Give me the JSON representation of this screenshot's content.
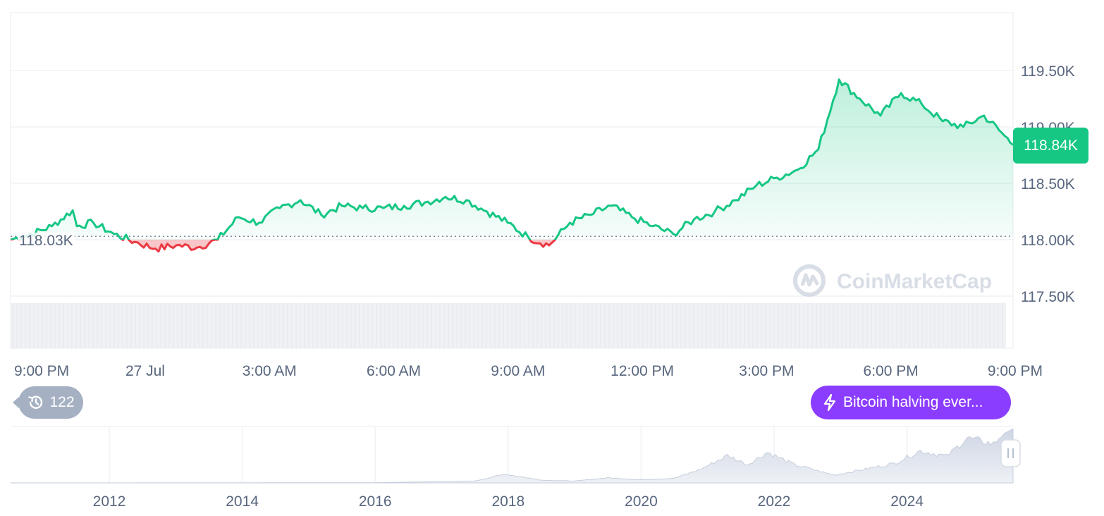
{
  "colors": {
    "up": "#16c784",
    "down": "#ea3943",
    "grid": "#eff2f5",
    "label": "#58667e",
    "volume": "#e6e9ee",
    "event": "#8b3dff",
    "history": "#a6b0c3"
  },
  "watermark": "CoinMarketCap",
  "current_price_label": "118.84K",
  "reference_price_label": "118.03K",
  "history_badge": {
    "icon": "history-clock-icon",
    "count": "122"
  },
  "event_badge": {
    "icon": "lightning-icon",
    "label": "Bitcoin halving ever..."
  },
  "chart_data": [
    {
      "type": "area",
      "ylim": [
        117.25,
        119.92
      ],
      "reference_price": 118.03,
      "current_price": 118.84,
      "yticks": [
        {
          "value": 117.5,
          "label": "117.50K"
        },
        {
          "value": 118.0,
          "label": "118.00K"
        },
        {
          "value": 118.5,
          "label": "118.50K"
        },
        {
          "value": 119.0,
          "label": "119.00K"
        },
        {
          "value": 119.5,
          "label": "119.50K"
        }
      ],
      "xlim": [
        0,
        24.2
      ],
      "xticks": [
        {
          "x": 0.75,
          "label": "9:00 PM"
        },
        {
          "x": 3.25,
          "label": "27 Jul"
        },
        {
          "x": 6.25,
          "label": "3:00 AM"
        },
        {
          "x": 9.25,
          "label": "6:00 AM"
        },
        {
          "x": 12.25,
          "label": "9:00 AM"
        },
        {
          "x": 15.25,
          "label": "12:00 PM"
        },
        {
          "x": 18.25,
          "label": "3:00 PM"
        },
        {
          "x": 21.25,
          "label": "6:00 PM"
        },
        {
          "x": 24.25,
          "label": "9:00 PM"
        }
      ],
      "series": [
        {
          "x": [
            0,
            0.5,
            1,
            1.5,
            1.6,
            2,
            2.5,
            3,
            3.5,
            4,
            4.5,
            5,
            5.5,
            6,
            6.5,
            7,
            7.5,
            8,
            8.5,
            9,
            9.5,
            10,
            10.5,
            11,
            11.5,
            12,
            12.5,
            13,
            13.5,
            14,
            14.5,
            15,
            15.5,
            16,
            16.5,
            17,
            17.5,
            18,
            18.5,
            19,
            19.5,
            20,
            20.5,
            21,
            21.5,
            22,
            22.5,
            23,
            23.5,
            24,
            24.2
          ],
          "y": [
            118.0,
            118.05,
            118.12,
            118.26,
            118.12,
            118.15,
            118.05,
            117.98,
            117.92,
            117.95,
            117.93,
            118.0,
            118.2,
            118.15,
            118.28,
            118.35,
            118.22,
            118.3,
            118.28,
            118.28,
            118.3,
            118.33,
            118.38,
            118.35,
            118.25,
            118.15,
            118.02,
            117.95,
            118.15,
            118.22,
            118.3,
            118.2,
            118.12,
            118.05,
            118.18,
            118.25,
            118.35,
            118.48,
            118.55,
            118.62,
            118.8,
            119.42,
            119.25,
            119.1,
            119.3,
            119.2,
            119.05,
            119.0,
            119.1,
            118.92,
            118.84
          ]
        }
      ]
    },
    {
      "type": "area",
      "xticks": [
        "2012",
        "2014",
        "2016",
        "2018",
        "2020",
        "2022",
        "2024"
      ],
      "x": [
        2010.5,
        2013,
        2016,
        2017.5,
        2017.95,
        2018.5,
        2019,
        2019.5,
        2020,
        2020.5,
        2020.9,
        2021.3,
        2021.6,
        2021.9,
        2022.3,
        2022.9,
        2023.3,
        2023.8,
        2024.2,
        2024.6,
        2024.9,
        2025.3,
        2025.5
      ],
      "y": [
        0,
        0.1,
        0.4,
        4,
        19,
        6,
        4,
        11,
        7,
        10,
        30,
        60,
        40,
        67,
        40,
        17,
        28,
        42,
        70,
        58,
        98,
        85,
        118
      ]
    }
  ]
}
